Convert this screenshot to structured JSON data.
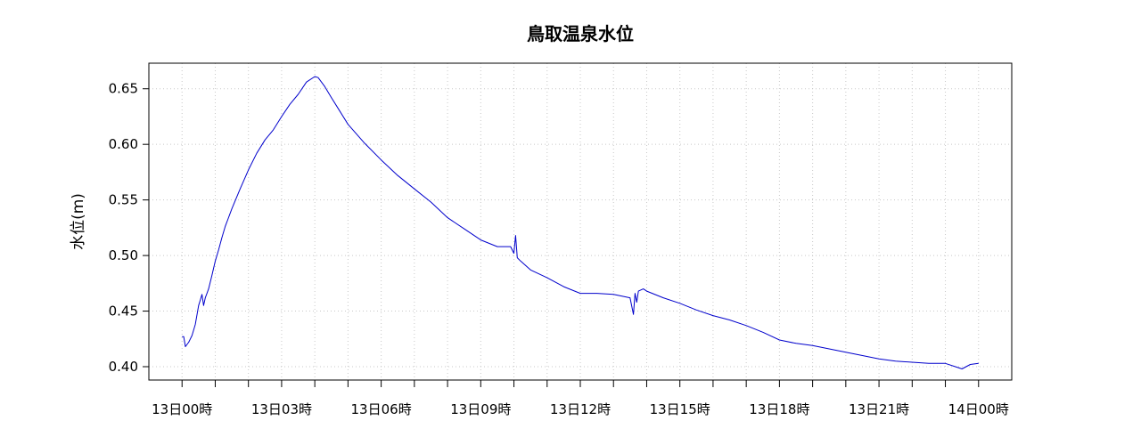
{
  "chart_data": {
    "type": "line",
    "title": "鳥取温泉水位",
    "xlabel": "",
    "ylabel": "水位(m)",
    "x_unit": "hours from 13日00時",
    "xlim": [
      -1,
      25
    ],
    "ylim": [
      0.388,
      0.673
    ],
    "grid": true,
    "legend": "none",
    "line_color": "#0000cc",
    "x_ticks": [
      0,
      3,
      6,
      9,
      12,
      15,
      18,
      21,
      24
    ],
    "x_tick_labels": [
      "13日00時",
      "13日03時",
      "13日06時",
      "13日09時",
      "13日12時",
      "13日15時",
      "13日18時",
      "13日21時",
      "14日00時"
    ],
    "x_minor_ticks": [
      1,
      2,
      4,
      5,
      7,
      8,
      10,
      11,
      13,
      14,
      16,
      17,
      19,
      20,
      22,
      23
    ],
    "y_ticks": [
      0.4,
      0.45,
      0.5,
      0.55,
      0.6,
      0.65
    ],
    "y_tick_labels": [
      "0.40",
      "0.45",
      "0.50",
      "0.55",
      "0.60",
      "0.65"
    ],
    "series": [
      {
        "x": [
          0.0,
          0.05,
          0.1,
          0.15,
          0.2,
          0.3,
          0.4,
          0.5,
          0.55,
          0.6,
          0.65,
          0.7,
          0.75,
          0.8,
          0.9,
          1.0,
          1.1,
          1.2,
          1.3,
          1.5,
          1.75,
          2.0,
          2.25,
          2.5,
          2.75,
          3.0,
          3.25,
          3.5,
          3.75,
          4.0,
          4.1,
          4.2,
          4.3,
          4.5,
          4.75,
          5.0,
          5.5,
          6.0,
          6.5,
          7.0,
          7.5,
          8.0,
          8.5,
          9.0,
          9.5,
          9.9,
          10.0,
          10.05,
          10.1,
          10.2,
          10.5,
          11.0,
          11.5,
          12.0,
          12.5,
          13.0,
          13.5,
          13.6,
          13.65,
          13.7,
          13.75,
          13.9,
          14.0,
          14.5,
          15.0,
          15.5,
          16.0,
          16.5,
          17.0,
          17.5,
          18.0,
          18.5,
          19.0,
          19.5,
          20.0,
          20.5,
          21.0,
          21.5,
          22.0,
          22.5,
          23.0,
          23.3,
          23.5,
          23.75,
          24.0
        ],
        "y": [
          0.427,
          0.427,
          0.418,
          0.42,
          0.422,
          0.428,
          0.438,
          0.455,
          0.46,
          0.465,
          0.455,
          0.462,
          0.466,
          0.47,
          0.482,
          0.495,
          0.505,
          0.516,
          0.526,
          0.542,
          0.56,
          0.577,
          0.592,
          0.604,
          0.613,
          0.625,
          0.636,
          0.645,
          0.656,
          0.661,
          0.66,
          0.656,
          0.652,
          0.642,
          0.63,
          0.618,
          0.601,
          0.586,
          0.572,
          0.56,
          0.548,
          0.534,
          0.524,
          0.514,
          0.508,
          0.508,
          0.502,
          0.518,
          0.498,
          0.495,
          0.487,
          0.48,
          0.472,
          0.466,
          0.466,
          0.465,
          0.462,
          0.447,
          0.466,
          0.458,
          0.468,
          0.47,
          0.468,
          0.462,
          0.457,
          0.451,
          0.446,
          0.442,
          0.437,
          0.431,
          0.424,
          0.421,
          0.419,
          0.416,
          0.413,
          0.41,
          0.407,
          0.405,
          0.404,
          0.403,
          0.403,
          0.4,
          0.398,
          0.402,
          0.403
        ]
      }
    ]
  }
}
